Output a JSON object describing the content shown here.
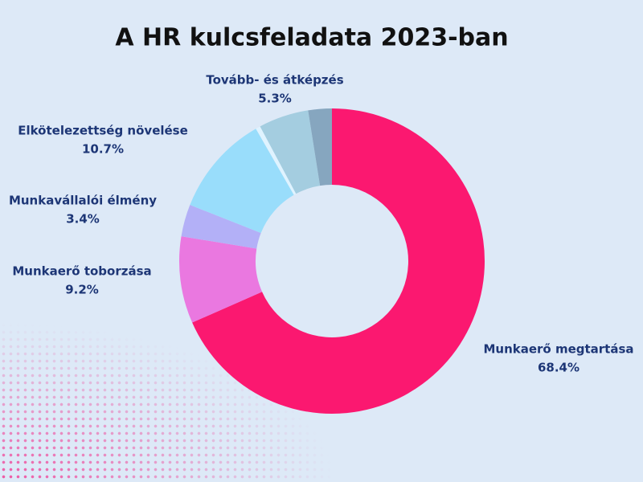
{
  "chart_data": {
    "type": "donut",
    "title": "A HR kulcsfeladata 2023-ban",
    "categories": [
      "Munkaerő megtartása",
      "Munkaerő toborzása",
      "Munkavállalói élmény",
      "Elkötelezettség növelése",
      null,
      "Tovább- és átképzés",
      null
    ],
    "values": [
      68.4,
      9.2,
      3.4,
      10.7,
      0.5,
      5.3,
      2.5
    ],
    "value_labels": [
      "68.4%",
      "9.2%",
      "3.4%",
      "10.7%",
      null,
      "5.3%",
      null
    ],
    "colors": [
      "#fb1870",
      "#ea78e0",
      "#b3b0f7",
      "#99ddfb",
      "#dff3ff",
      "#a4cde0",
      "#86a6bf"
    ]
  }
}
